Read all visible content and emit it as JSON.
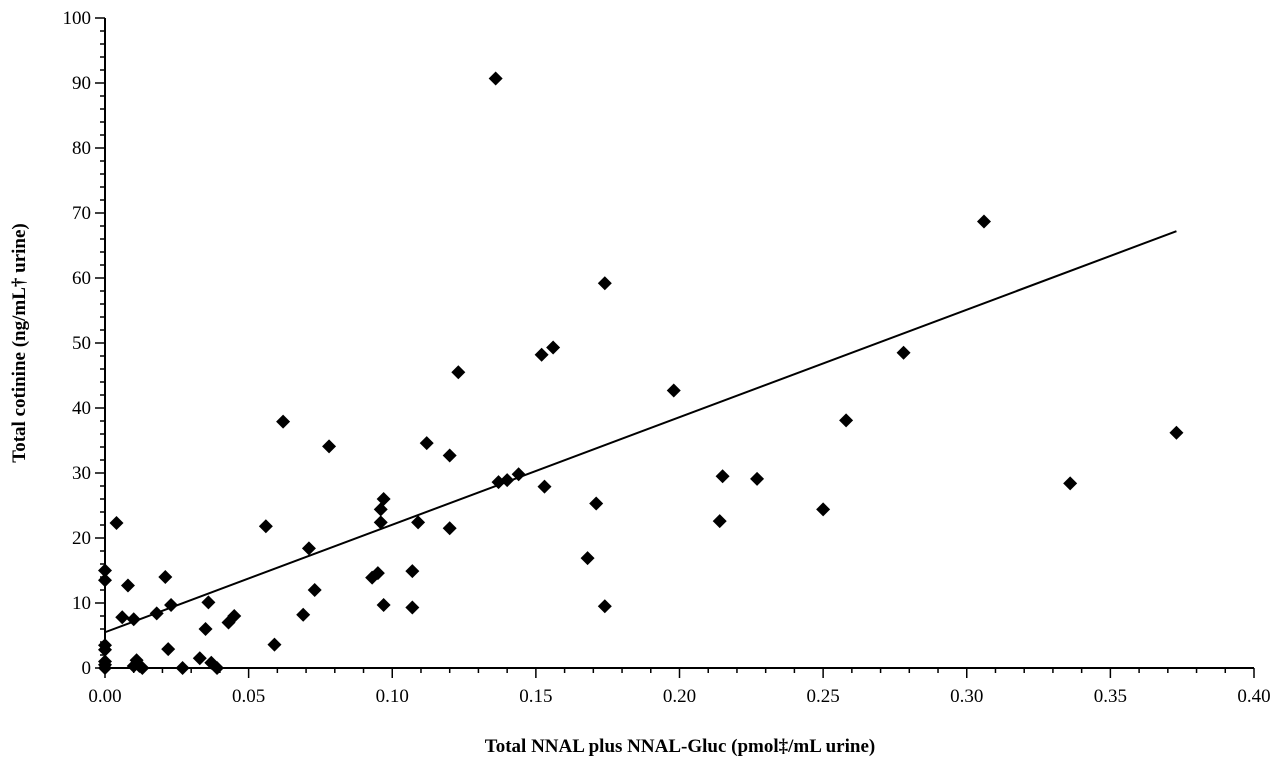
{
  "chart_data": {
    "type": "scatter",
    "xlabel": "Total NNAL plus NNAL-Gluc (pmol‡/mL urine)",
    "ylabel": "Total cotinine (ng/mL† urine)",
    "xlim": [
      0,
      0.4
    ],
    "ylim": [
      0,
      100
    ],
    "x_ticks": [
      "0.00",
      "0.05",
      "0.10",
      "0.15",
      "0.20",
      "0.25",
      "0.30",
      "0.35",
      "0.40"
    ],
    "y_ticks": [
      "0",
      "10",
      "20",
      "30",
      "40",
      "50",
      "60",
      "70",
      "80",
      "90",
      "100"
    ],
    "grid": false,
    "legend": "none",
    "marker": "diamond",
    "marker_color": "#000000",
    "points": [
      [
        0.0,
        15.0
      ],
      [
        0.0,
        13.5
      ],
      [
        0.0,
        3.5
      ],
      [
        0.0,
        2.8
      ],
      [
        0.0,
        1.0
      ],
      [
        0.0,
        0.5
      ],
      [
        0.0,
        0.0
      ],
      [
        0.004,
        22.3
      ],
      [
        0.006,
        7.8
      ],
      [
        0.008,
        12.7
      ],
      [
        0.01,
        7.5
      ],
      [
        0.01,
        0.3
      ],
      [
        0.011,
        1.2
      ],
      [
        0.012,
        0.3
      ],
      [
        0.013,
        0.0
      ],
      [
        0.018,
        8.4
      ],
      [
        0.021,
        14.0
      ],
      [
        0.022,
        2.9
      ],
      [
        0.023,
        9.7
      ],
      [
        0.027,
        0.0
      ],
      [
        0.033,
        1.5
      ],
      [
        0.035,
        6.0
      ],
      [
        0.036,
        10.1
      ],
      [
        0.037,
        0.8
      ],
      [
        0.039,
        0.0
      ],
      [
        0.043,
        7.0
      ],
      [
        0.045,
        8.0
      ],
      [
        0.056,
        21.8
      ],
      [
        0.059,
        3.6
      ],
      [
        0.062,
        37.9
      ],
      [
        0.069,
        8.2
      ],
      [
        0.071,
        18.4
      ],
      [
        0.073,
        12.0
      ],
      [
        0.078,
        34.1
      ],
      [
        0.093,
        13.9
      ],
      [
        0.095,
        14.6
      ],
      [
        0.096,
        24.4
      ],
      [
        0.096,
        22.4
      ],
      [
        0.097,
        26.0
      ],
      [
        0.097,
        9.7
      ],
      [
        0.107,
        14.9
      ],
      [
        0.107,
        9.3
      ],
      [
        0.109,
        22.4
      ],
      [
        0.112,
        34.6
      ],
      [
        0.12,
        32.7
      ],
      [
        0.12,
        21.5
      ],
      [
        0.123,
        45.5
      ],
      [
        0.136,
        90.7
      ],
      [
        0.137,
        28.6
      ],
      [
        0.14,
        28.9
      ],
      [
        0.144,
        29.8
      ],
      [
        0.152,
        48.2
      ],
      [
        0.153,
        27.9
      ],
      [
        0.156,
        49.3
      ],
      [
        0.168,
        16.9
      ],
      [
        0.171,
        25.3
      ],
      [
        0.174,
        59.2
      ],
      [
        0.174,
        9.5
      ],
      [
        0.198,
        42.7
      ],
      [
        0.214,
        22.6
      ],
      [
        0.215,
        29.5
      ],
      [
        0.227,
        29.1
      ],
      [
        0.25,
        24.4
      ],
      [
        0.258,
        38.1
      ],
      [
        0.278,
        48.5
      ],
      [
        0.306,
        68.7
      ],
      [
        0.336,
        28.4
      ],
      [
        0.373,
        36.2
      ]
    ],
    "fit_line": {
      "x": [
        0.0,
        0.373
      ],
      "y": [
        5.5,
        67.2
      ]
    }
  }
}
